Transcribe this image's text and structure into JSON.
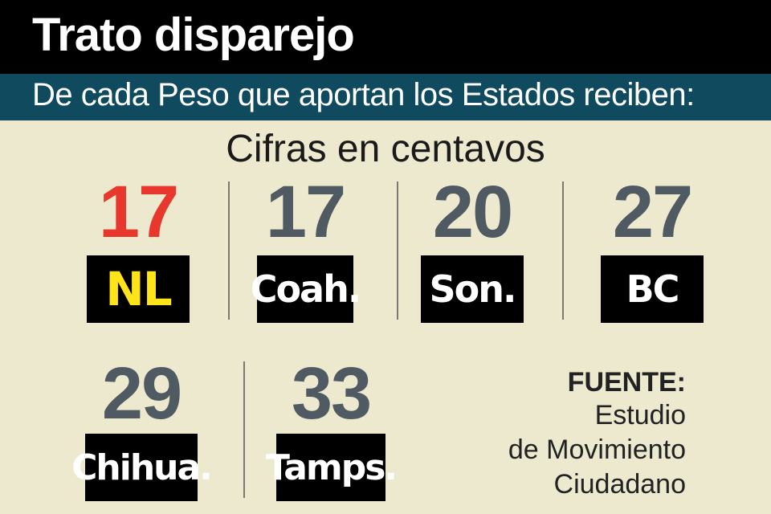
{
  "header": {
    "title": "Trato disparejo",
    "subtitle": "De cada Peso que aportan los Estados reciben:"
  },
  "units_label": "Cifras en centavos",
  "colors": {
    "title_bg": "#000000",
    "subtitle_bg": "#0f4a5e",
    "background": "#ece9cf",
    "value_default": "#4f5a62",
    "value_highlight": "#e8372c",
    "label_default": "#ffffff",
    "label_highlight": "#ffe41a"
  },
  "chart_data": {
    "type": "table",
    "title": "Trato disparejo",
    "subtitle": "De cada Peso que aportan los Estados reciben:",
    "units": "Cifras en centavos",
    "categories": [
      "NL",
      "Coah.",
      "Son.",
      "BC",
      "Chihua.",
      "Tamps."
    ],
    "values": [
      17,
      17,
      20,
      27,
      29,
      33
    ],
    "highlight": "NL"
  },
  "source": {
    "title": "FUENTE:",
    "lines": [
      "Estudio",
      "de Movimiento",
      "Ciudadano"
    ]
  }
}
